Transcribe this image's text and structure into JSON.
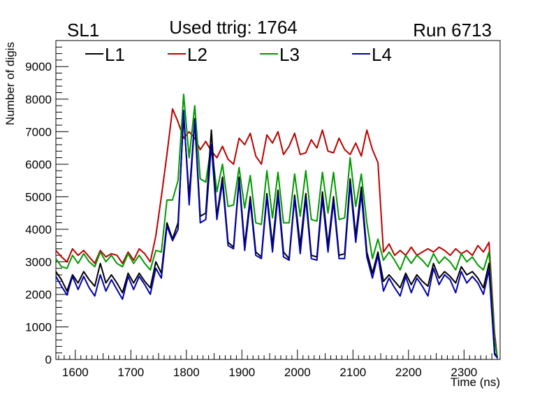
{
  "chart_data": {
    "type": "line",
    "header_left": "SL1",
    "title": "Used ttrig: 1764",
    "header_right": "Run 6713",
    "xlabel": "Time (ns)",
    "ylabel": "Number of digis",
    "xlim": [
      1565,
      2365
    ],
    "ylim": [
      0,
      9800
    ],
    "x_ticks": [
      1600,
      1700,
      1800,
      1900,
      2000,
      2100,
      2200,
      2300
    ],
    "y_ticks": [
      0,
      1000,
      2000,
      3000,
      4000,
      5000,
      6000,
      7000,
      8000,
      9000
    ],
    "legend_position": "top",
    "x": [
      1565,
      1575,
      1585,
      1595,
      1605,
      1615,
      1625,
      1635,
      1645,
      1655,
      1665,
      1675,
      1685,
      1695,
      1705,
      1715,
      1725,
      1735,
      1745,
      1755,
      1765,
      1775,
      1785,
      1795,
      1805,
      1815,
      1825,
      1835,
      1845,
      1855,
      1865,
      1875,
      1885,
      1895,
      1905,
      1915,
      1925,
      1935,
      1945,
      1955,
      1965,
      1975,
      1985,
      1995,
      2005,
      2015,
      2025,
      2035,
      2045,
      2055,
      2065,
      2075,
      2085,
      2095,
      2105,
      2115,
      2125,
      2135,
      2145,
      2155,
      2165,
      2175,
      2185,
      2195,
      2205,
      2215,
      2225,
      2235,
      2245,
      2255,
      2265,
      2275,
      2285,
      2295,
      2305,
      2315,
      2325,
      2335,
      2345,
      2355,
      2360
    ],
    "series": [
      {
        "name": "L1",
        "color": "#000000",
        "values": [
          2700,
          2450,
          2100,
          2600,
          2350,
          2700,
          2450,
          2250,
          2950,
          2350,
          2600,
          2350,
          2050,
          2650,
          2350,
          2650,
          2400,
          2200,
          3000,
          2650,
          4200,
          3700,
          4200,
          7500,
          5000,
          7400,
          4400,
          4500,
          7050,
          4400,
          5600,
          3600,
          3450,
          5600,
          3500,
          5000,
          3300,
          3150,
          5100,
          3500,
          5200,
          3300,
          3100,
          5050,
          3500,
          5100,
          3200,
          3150,
          5150,
          3500,
          5000,
          3200,
          3250,
          5550,
          3800,
          5300,
          3300,
          2650,
          3300,
          2400,
          2600,
          2400,
          2200,
          2650,
          2300,
          2600,
          2400,
          2250,
          2950,
          2500,
          2700,
          2550,
          2350,
          2850,
          2600,
          2700,
          2500,
          2200,
          2950,
          200,
          50
        ]
      },
      {
        "name": "L2",
        "color": "#bb0000",
        "values": [
          3350,
          3150,
          3000,
          3400,
          3200,
          3350,
          3150,
          2950,
          3350,
          3150,
          3250,
          3200,
          2950,
          3300,
          3050,
          3400,
          3250,
          3000,
          3800,
          5000,
          6300,
          7700,
          7300,
          6800,
          7000,
          6800,
          6450,
          6700,
          6400,
          6200,
          6550,
          6150,
          6000,
          6800,
          6600,
          6950,
          6250,
          6000,
          6900,
          6650,
          7000,
          6300,
          6550,
          6950,
          6300,
          6350,
          6750,
          6500,
          7050,
          6400,
          6350,
          6800,
          6450,
          6300,
          6650,
          6250,
          7050,
          6450,
          6050,
          3300,
          3550,
          3200,
          3350,
          3200,
          3450,
          3200,
          3300,
          3400,
          3300,
          3450,
          3350,
          3200,
          3400,
          3250,
          3350,
          3200,
          3500,
          3300,
          3600,
          800,
          50
        ]
      },
      {
        "name": "L3",
        "color": "#009900",
        "values": [
          3100,
          2850,
          2800,
          3200,
          2950,
          3250,
          3000,
          2850,
          3300,
          3000,
          3200,
          2950,
          2850,
          3250,
          2950,
          3200,
          2950,
          2750,
          3350,
          3300,
          4900,
          4900,
          5500,
          8150,
          6200,
          7800,
          5550,
          5450,
          6600,
          5150,
          6000,
          4700,
          4750,
          5900,
          4650,
          5650,
          4200,
          4150,
          5800,
          4350,
          5750,
          4200,
          4200,
          5700,
          4400,
          5800,
          4300,
          4250,
          5750,
          4500,
          5750,
          4300,
          4350,
          6200,
          4700,
          5700,
          4200,
          3100,
          3700,
          3050,
          3300,
          3050,
          2750,
          3200,
          2950,
          3200,
          3050,
          2850,
          3250,
          2950,
          3150,
          3000,
          2750,
          3250,
          3000,
          3150,
          2900,
          2750,
          3300,
          600,
          50
        ]
      },
      {
        "name": "L4",
        "color": "#0000aa",
        "values": [
          2550,
          2250,
          1980,
          2550,
          2150,
          2550,
          2200,
          1950,
          2600,
          2100,
          2450,
          2150,
          1850,
          2550,
          2150,
          2550,
          2300,
          2000,
          2800,
          2500,
          4100,
          3650,
          4000,
          7650,
          4750,
          7350,
          4200,
          4300,
          6600,
          4300,
          5450,
          3500,
          3400,
          5500,
          3350,
          4850,
          3200,
          3100,
          5000,
          3300,
          5050,
          3150,
          3050,
          4950,
          3250,
          4950,
          3100,
          3050,
          4950,
          3300,
          4850,
          3100,
          3100,
          5400,
          3600,
          5100,
          3150,
          2500,
          3200,
          2100,
          2500,
          2200,
          1950,
          2550,
          2050,
          2500,
          2250,
          1950,
          2800,
          2300,
          2600,
          2450,
          2050,
          2700,
          2350,
          2550,
          2350,
          2000,
          2750,
          150,
          50
        ]
      }
    ]
  }
}
